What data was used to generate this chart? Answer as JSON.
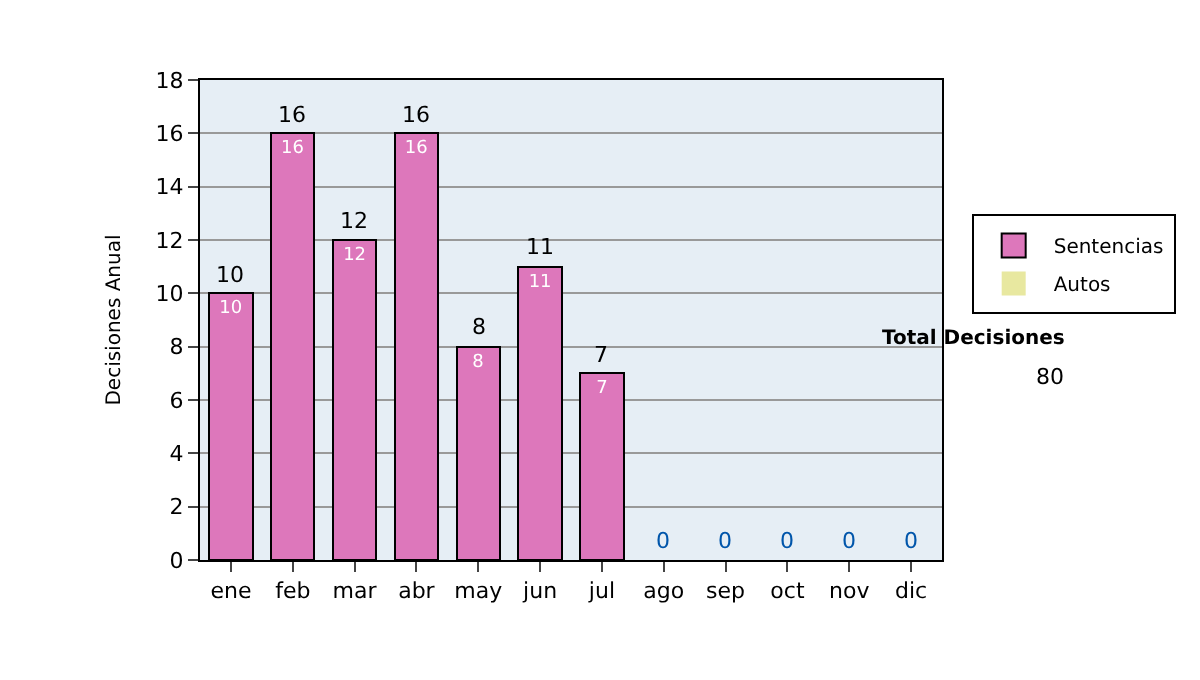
{
  "chart_data": {
    "type": "bar",
    "stacked": true,
    "ylabel": "Decisiones Anual",
    "categories": [
      "ene",
      "feb",
      "mar",
      "abr",
      "may",
      "jun",
      "jul",
      "ago",
      "sep",
      "oct",
      "nov",
      "dic"
    ],
    "series": [
      {
        "name": "Sentencias",
        "color": "#dd77bb",
        "values": [
          10,
          16,
          12,
          16,
          8,
          11,
          7,
          0,
          0,
          0,
          0,
          0
        ],
        "value_labels": [
          "10",
          "16",
          "12",
          "16",
          "8",
          "11",
          "7",
          null,
          null,
          null,
          null,
          null
        ]
      },
      {
        "name": "Autos",
        "color": "#e8e8a0",
        "values": [
          null,
          null,
          null,
          null,
          null,
          null,
          null,
          null,
          null,
          null,
          null,
          null
        ]
      }
    ],
    "totals": [
      "10",
      "16",
      "12",
      "16",
      "8",
      "11",
      "7",
      "0",
      "0",
      "0",
      "0",
      "0"
    ],
    "ylim": [
      0,
      18
    ],
    "yticks": [
      0,
      2,
      4,
      6,
      8,
      10,
      12,
      14,
      16,
      18
    ],
    "grid": "y",
    "legend": "right",
    "annotations": [
      "Total Decisiones",
      "80"
    ]
  }
}
